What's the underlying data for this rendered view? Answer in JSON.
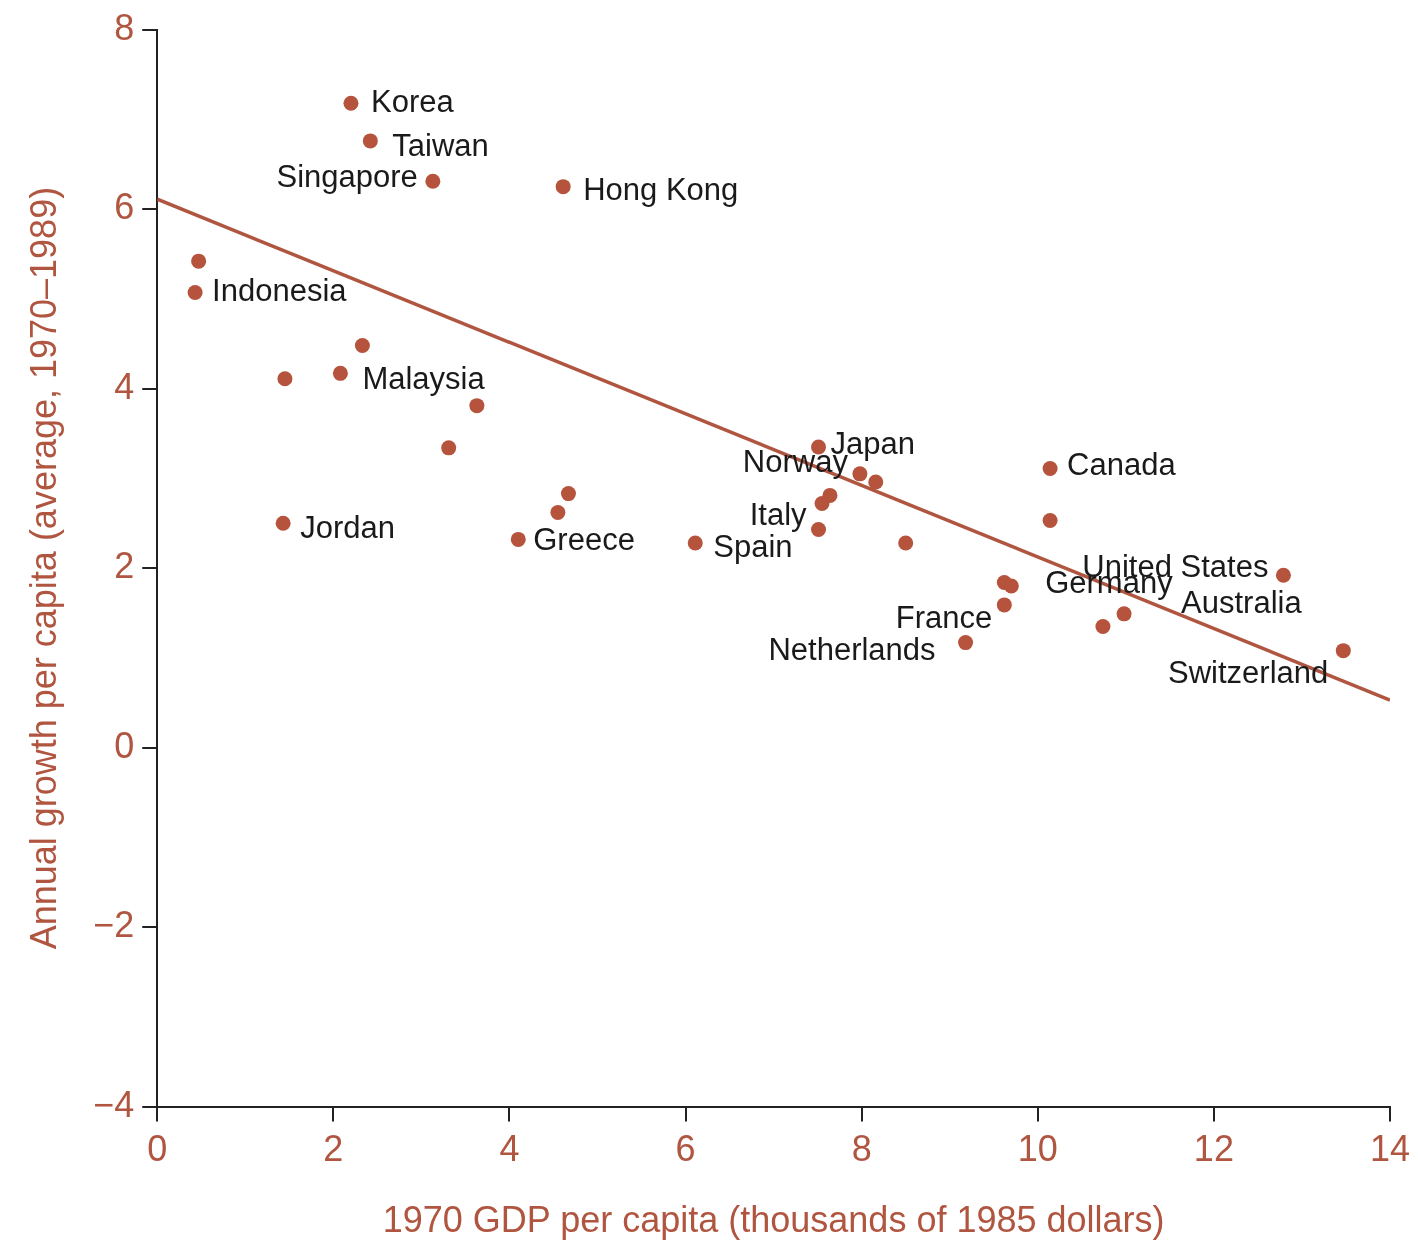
{
  "chart_data": {
    "type": "scatter",
    "xlabel": "1970 GDP per capita (thousands of 1985 dollars)",
    "ylabel": "Annual growth per capita (average, 1970–1989)",
    "xlim": [
      0,
      14
    ],
    "xticks": [
      0,
      2,
      4,
      6,
      8,
      10,
      12,
      14
    ],
    "ylim": [
      -4,
      8
    ],
    "yticks": [
      {
        "value": -4,
        "label": "−4"
      },
      {
        "value": -2,
        "label": "−2"
      },
      0,
      2,
      4,
      6,
      8
    ],
    "grid": false,
    "legend": false,
    "marker": "circle",
    "series": [
      {
        "type": "scatter",
        "color": "#b5533c",
        "x": [
          2.2,
          2.42,
          3.13,
          4.61,
          0.47,
          0.43,
          2.33,
          1.45,
          2.08,
          3.63,
          3.31,
          1.43,
          4.1,
          4.55,
          4.67,
          6.11,
          7.51,
          7.98,
          8.16,
          7.64,
          7.55,
          7.51,
          8.5,
          10.14,
          10.14,
          9.62,
          9.7,
          9.62,
          9.18,
          10.74,
          10.98,
          12.79,
          13.47
        ],
        "values": [
          7.18,
          6.76,
          6.31,
          6.25,
          5.42,
          5.07,
          4.48,
          4.11,
          4.17,
          3.81,
          3.34,
          2.5,
          2.32,
          2.62,
          2.83,
          2.28,
          3.35,
          3.05,
          2.96,
          2.81,
          2.72,
          2.43,
          2.28,
          3.11,
          2.53,
          1.84,
          1.8,
          1.59,
          1.17,
          1.35,
          1.49,
          1.92,
          1.08
        ]
      },
      {
        "type": "line",
        "color": "#b0553f",
        "marker": "none",
        "x": [
          0,
          14
        ],
        "values": [
          6.11,
          0.53
        ]
      }
    ],
    "annotations": [
      {
        "text": "Korea",
        "x": 2.2,
        "y": 7.18
      },
      {
        "text": "Taiwan",
        "x": 2.42,
        "y": 6.76
      },
      {
        "text": "Singapore",
        "x": 3.13,
        "y": 6.31
      },
      {
        "text": "Hong Kong",
        "x": 4.61,
        "y": 6.25
      },
      {
        "text": "Indonesia",
        "x": 0.43,
        "y": 5.07
      },
      {
        "text": "Malaysia",
        "x": 2.08,
        "y": 4.17
      },
      {
        "text": "Jordan",
        "x": 1.43,
        "y": 2.5
      },
      {
        "text": "Greece",
        "x": 4.1,
        "y": 2.32
      },
      {
        "text": "Spain",
        "x": 6.11,
        "y": 2.28
      },
      {
        "text": "Japan",
        "x": 7.51,
        "y": 3.35
      },
      {
        "text": "Norway",
        "x": 7.98,
        "y": 3.05
      },
      {
        "text": "Italy",
        "x": 7.51,
        "y": 2.43
      },
      {
        "text": "Canada",
        "x": 10.14,
        "y": 3.11
      },
      {
        "text": "United States",
        "x": 12.79,
        "y": 1.92
      },
      {
        "text": "Germany",
        "x": 10.74,
        "y": 1.35
      },
      {
        "text": "Australia",
        "x": 10.98,
        "y": 1.49
      },
      {
        "text": "France",
        "x": 9.62,
        "y": 1.59
      },
      {
        "text": "Netherlands",
        "x": 9.18,
        "y": 1.17
      },
      {
        "text": "Switzerland",
        "x": 13.47,
        "y": 1.08
      }
    ]
  }
}
